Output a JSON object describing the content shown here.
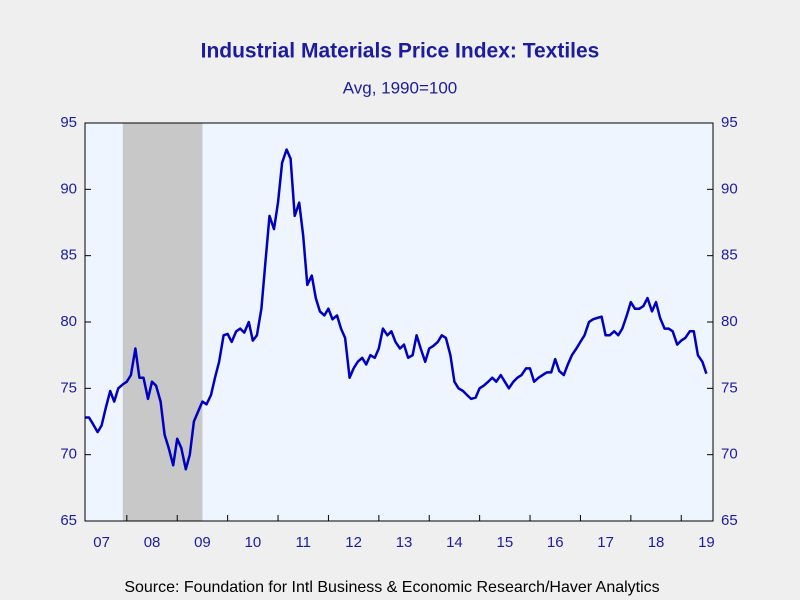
{
  "chart_data": {
    "type": "line",
    "title": "Industrial Materials Price Index: Textiles",
    "subtitle": "Avg, 1990=100",
    "source": "Source:  Foundation for Intl Business & Economic Research/Haver Analytics",
    "xlim": [
      2007.17,
      2019.63
    ],
    "ylim": [
      65,
      95
    ],
    "yticks": [
      65,
      70,
      75,
      80,
      85,
      90,
      95
    ],
    "y2lim": [
      65,
      95
    ],
    "y2ticks": [
      65,
      70,
      75,
      80,
      85,
      90,
      95
    ],
    "xticks": [
      {
        "value": 2007.5,
        "label": "07"
      },
      {
        "value": 2008.5,
        "label": "08"
      },
      {
        "value": 2009.5,
        "label": "09"
      },
      {
        "value": 2010.5,
        "label": "10"
      },
      {
        "value": 2011.5,
        "label": "11"
      },
      {
        "value": 2012.5,
        "label": "12"
      },
      {
        "value": 2013.5,
        "label": "13"
      },
      {
        "value": 2014.5,
        "label": "14"
      },
      {
        "value": 2015.5,
        "label": "15"
      },
      {
        "value": 2016.5,
        "label": "16"
      },
      {
        "value": 2017.5,
        "label": "17"
      },
      {
        "value": 2018.5,
        "label": "18"
      },
      {
        "value": 2019.5,
        "label": "19"
      }
    ],
    "shaded": [
      2007.92,
      2009.5
    ],
    "shade_color": "#c8c8c8",
    "color": "#0000c0",
    "x": [
      2007.17,
      2007.25,
      2007.33,
      2007.42,
      2007.5,
      2007.58,
      2007.67,
      2007.75,
      2007.83,
      2007.92,
      2008,
      2008.08,
      2008.17,
      2008.25,
      2008.33,
      2008.42,
      2008.5,
      2008.58,
      2008.67,
      2008.75,
      2008.83,
      2008.92,
      2009,
      2009.08,
      2009.17,
      2009.25,
      2009.33,
      2009.42,
      2009.5,
      2009.58,
      2009.67,
      2009.75,
      2009.83,
      2009.92,
      2010,
      2010.08,
      2010.17,
      2010.25,
      2010.33,
      2010.42,
      2010.5,
      2010.58,
      2010.67,
      2010.75,
      2010.83,
      2010.92,
      2011,
      2011.08,
      2011.17,
      2011.25,
      2011.33,
      2011.42,
      2011.5,
      2011.58,
      2011.67,
      2011.75,
      2011.83,
      2011.92,
      2012,
      2012.08,
      2012.17,
      2012.25,
      2012.33,
      2012.42,
      2012.5,
      2012.58,
      2012.67,
      2012.75,
      2012.83,
      2012.92,
      2013,
      2013.08,
      2013.17,
      2013.25,
      2013.33,
      2013.42,
      2013.5,
      2013.58,
      2013.67,
      2013.75,
      2013.83,
      2013.92,
      2014,
      2014.08,
      2014.17,
      2014.25,
      2014.33,
      2014.42,
      2014.5,
      2014.58,
      2014.67,
      2014.75,
      2014.83,
      2014.92,
      2015,
      2015.08,
      2015.17,
      2015.25,
      2015.33,
      2015.42,
      2015.5,
      2015.58,
      2015.67,
      2015.75,
      2015.83,
      2015.92,
      2016,
      2016.08,
      2016.17,
      2016.25,
      2016.33,
      2016.42,
      2016.5,
      2016.58,
      2016.67,
      2016.75,
      2016.83,
      2016.92,
      2017,
      2017.08,
      2017.17,
      2017.25,
      2017.33,
      2017.42,
      2017.5,
      2017.58,
      2017.67,
      2017.75,
      2017.83,
      2017.92,
      2018,
      2018.08,
      2018.17,
      2018.25,
      2018.33,
      2018.42,
      2018.5,
      2018.58,
      2018.67,
      2018.75,
      2018.83,
      2018.92,
      2019,
      2019.08,
      2019.17,
      2019.25,
      2019.33,
      2019.42,
      2019.5
    ],
    "values": [
      72.8,
      72.8,
      72.3,
      71.7,
      72.2,
      73.5,
      74.8,
      74.0,
      75.0,
      75.3,
      75.5,
      76.0,
      78.0,
      75.8,
      75.8,
      74.2,
      75.5,
      75.2,
      74.0,
      71.5,
      70.5,
      69.2,
      71.2,
      70.5,
      68.9,
      70.0,
      72.5,
      73.3,
      74.0,
      73.8,
      74.5,
      75.8,
      77.0,
      79.0,
      79.1,
      78.5,
      79.3,
      79.5,
      79.2,
      80.0,
      78.6,
      79.0,
      81.0,
      84.5,
      88.0,
      87.0,
      89.0,
      92.0,
      93.0,
      92.3,
      88.0,
      89.0,
      86.5,
      82.8,
      83.5,
      81.8,
      80.8,
      80.5,
      81.0,
      80.2,
      80.5,
      79.5,
      78.8,
      75.8,
      76.5,
      77.0,
      77.3,
      76.8,
      77.5,
      77.3,
      78.0,
      79.5,
      79.0,
      79.3,
      78.5,
      78.0,
      78.3,
      77.3,
      77.5,
      79.0,
      78.0,
      77.0,
      78.0,
      78.2,
      78.5,
      79.0,
      78.8,
      77.5,
      75.5,
      75.0,
      74.8,
      74.5,
      74.2,
      74.3,
      75.0,
      75.2,
      75.5,
      75.8,
      75.5,
      76.0,
      75.5,
      75.0,
      75.5,
      75.8,
      76.0,
      76.5,
      76.5,
      75.5,
      75.8,
      76.0,
      76.2,
      76.2,
      77.2,
      76.3,
      76.0,
      76.8,
      77.5,
      78.0,
      78.5,
      79.0,
      80.0,
      80.2,
      80.3,
      80.4,
      79.0,
      79.0,
      79.3,
      79.0,
      79.5,
      80.5,
      81.5,
      81.0,
      81.0,
      81.2,
      81.8,
      80.8,
      81.5,
      80.3,
      79.5,
      79.5,
      79.3,
      78.3,
      78.6,
      78.8,
      79.3,
      79.3,
      77.5,
      77.0,
      76.1
    ]
  }
}
